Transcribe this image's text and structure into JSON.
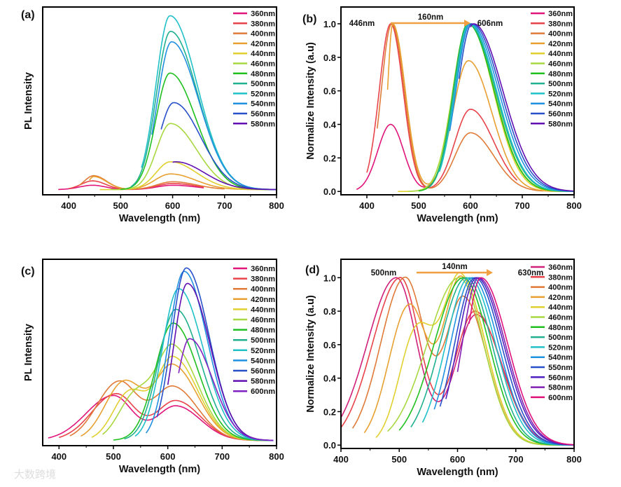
{
  "watermark": "大数跨境",
  "chart_data": [
    {
      "panel_label": "(a)",
      "type": "line",
      "xlabel": "Wavelength (nm)",
      "ylabel": "PL Intensity",
      "xlim": [
        350,
        800
      ],
      "xticks": [
        400,
        500,
        600,
        700,
        800
      ],
      "ylim": [
        -3,
        105
      ],
      "yticks": [],
      "legend_placement": "top-right",
      "series": [
        {
          "name": "360nm",
          "color": "#e0157a",
          "start": 380,
          "end": 660,
          "peaks": [
            [
              446,
              2.5,
              25,
              25
            ],
            [
              600,
              2.5,
              30,
              45
            ]
          ]
        },
        {
          "name": "380nm",
          "color": "#e8434a",
          "start": 400,
          "end": 660,
          "peaks": [
            [
              446,
              5,
              22,
              25
            ],
            [
              600,
              3.5,
              30,
              45
            ]
          ]
        },
        {
          "name": "400nm",
          "color": "#e07a38",
          "start": 420,
          "end": 700,
          "peaks": [
            [
              448,
              8,
              18,
              25
            ],
            [
              600,
              4.5,
              30,
              45
            ]
          ]
        },
        {
          "name": "420nm",
          "color": "#e8a030",
          "start": 440,
          "end": 780,
          "peaks": [
            [
              448,
              7.5,
              10,
              25
            ],
            [
              596,
              9,
              30,
              48
            ]
          ]
        },
        {
          "name": "440nm",
          "color": "#e0d030",
          "start": 460,
          "end": 800,
          "peaks": [
            [
              596,
              16,
              28,
              50
            ]
          ]
        },
        {
          "name": "460nm",
          "color": "#a8d840",
          "start": 480,
          "end": 800,
          "peaks": [
            [
              596,
              38,
              27,
              50
            ]
          ]
        },
        {
          "name": "480nm",
          "color": "#20c020",
          "start": 500,
          "end": 800,
          "peaks": [
            [
              595,
              67,
              27,
              50
            ]
          ]
        },
        {
          "name": "500nm",
          "color": "#20b090",
          "start": 520,
          "end": 800,
          "peaks": [
            [
              596,
              91,
              27,
              52
            ]
          ]
        },
        {
          "name": "520nm",
          "color": "#20c0c8",
          "start": 540,
          "end": 800,
          "peaks": [
            [
              595,
              100,
              27,
              52
            ]
          ]
        },
        {
          "name": "540nm",
          "color": "#2090e0",
          "start": 560,
          "end": 800,
          "peaks": [
            [
              598,
              85,
              27,
              52
            ]
          ]
        },
        {
          "name": "560nm",
          "color": "#2850c8",
          "start": 578,
          "end": 800,
          "peaks": [
            [
              602,
              50,
              28,
              52
            ]
          ]
        },
        {
          "name": "580nm",
          "color": "#6010b0",
          "start": 600,
          "end": 800,
          "peaks": [
            [
              606,
              16,
              30,
              55
            ]
          ]
        }
      ]
    },
    {
      "panel_label": "(b)",
      "type": "line",
      "xlabel": "Wavelength (nm)",
      "ylabel": "Normalize Intensity (a.u)",
      "xlim": [
        350,
        800
      ],
      "xticks": [
        400,
        500,
        600,
        700,
        800
      ],
      "ylim": [
        -0.02,
        1.1
      ],
      "yticks": [
        "0.0",
        "0.2",
        "0.4",
        "0.6",
        "0.8",
        "1.0"
      ],
      "legend_placement": "top-right",
      "annotation": {
        "left": "446nm",
        "shift": "160nm",
        "right": "606nm",
        "arrow_color": "#f0a040"
      },
      "series": [
        {
          "name": "360nm",
          "color": "#e0157a",
          "start": 380,
          "end": 660,
          "peaks": [
            [
              446,
              0.4,
              25,
              25
            ],
            [
              600,
              1.0,
              30,
              45
            ]
          ]
        },
        {
          "name": "380nm",
          "color": "#e8434a",
          "start": 400,
          "end": 690,
          "peaks": [
            [
              446,
              1.0,
              22,
              24
            ],
            [
              600,
              0.49,
              30,
              45
            ]
          ]
        },
        {
          "name": "400nm",
          "color": "#e07a38",
          "start": 420,
          "end": 740,
          "peaks": [
            [
              448,
              1.0,
              20,
              24
            ],
            [
              600,
              0.35,
              30,
              45
            ]
          ]
        },
        {
          "name": "420nm",
          "color": "#e8a030",
          "start": 440,
          "end": 780,
          "peaks": [
            [
              450,
              1.0,
              10,
              24
            ],
            [
              596,
              0.78,
              30,
              45
            ]
          ]
        },
        {
          "name": "440nm",
          "color": "#e0d030",
          "start": 460,
          "end": 800,
          "peaks": [
            [
              596,
              1.0,
              30,
              48
            ]
          ]
        },
        {
          "name": "460nm",
          "color": "#a8d840",
          "start": 480,
          "end": 800,
          "peaks": [
            [
              596,
              1.0,
              30,
              50
            ]
          ]
        },
        {
          "name": "480nm",
          "color": "#20c020",
          "start": 500,
          "end": 800,
          "peaks": [
            [
              595,
              1.0,
              28,
              50
            ]
          ]
        },
        {
          "name": "500nm",
          "color": "#20b090",
          "start": 520,
          "end": 800,
          "peaks": [
            [
              596,
              1.0,
              28,
              52
            ]
          ]
        },
        {
          "name": "520nm",
          "color": "#20c0c8",
          "start": 540,
          "end": 800,
          "peaks": [
            [
              598,
              1.0,
              28,
              52
            ]
          ]
        },
        {
          "name": "540nm",
          "color": "#2090e0",
          "start": 560,
          "end": 800,
          "peaks": [
            [
              600,
              1.0,
              28,
              54
            ]
          ]
        },
        {
          "name": "560nm",
          "color": "#2850c8",
          "start": 578,
          "end": 800,
          "peaks": [
            [
              603,
              1.0,
              28,
              55
            ]
          ]
        },
        {
          "name": "580nm",
          "color": "#6010b0",
          "start": 600,
          "end": 800,
          "peaks": [
            [
              606,
              1.0,
              30,
              56
            ]
          ]
        }
      ]
    },
    {
      "panel_label": "(c)",
      "type": "line",
      "xlabel": "Wavelength (nm)",
      "ylabel": "PL Intensity",
      "xlim": [
        370,
        800
      ],
      "xticks": [
        400,
        500,
        600,
        700,
        800
      ],
      "ylim": [
        -3,
        105
      ],
      "yticks": [],
      "legend_placement": "top-right",
      "series": [
        {
          "name": "360nm",
          "color": "#e0157a",
          "start": 380,
          "end": 795,
          "peaks": [
            [
              500,
              26,
              50,
              35
            ],
            [
              615,
              20,
              35,
              45
            ]
          ]
        },
        {
          "name": "380nm",
          "color": "#e8434a",
          "start": 400,
          "end": 795,
          "peaks": [
            [
              505,
              27,
              45,
              35
            ],
            [
              615,
              23,
              35,
              45
            ]
          ]
        },
        {
          "name": "400nm",
          "color": "#e07a38",
          "start": 420,
          "end": 795,
          "peaks": [
            [
              510,
              34,
              40,
              35
            ],
            [
              610,
              31,
              35,
              45
            ]
          ]
        },
        {
          "name": "420nm",
          "color": "#e8a030",
          "start": 440,
          "end": 795,
          "peaks": [
            [
              520,
              34,
              35,
              35
            ],
            [
              610,
              43,
              32,
              45
            ]
          ]
        },
        {
          "name": "440nm",
          "color": "#e0d030",
          "start": 460,
          "end": 795,
          "peaks": [
            [
              530,
              28,
              30,
              30
            ],
            [
              610,
              48,
              30,
              45
            ]
          ]
        },
        {
          "name": "460nm",
          "color": "#a8d840",
          "start": 480,
          "end": 795,
          "peaks": [
            [
              540,
              26,
              30,
              30
            ],
            [
              610,
              54,
              30,
              45
            ]
          ]
        },
        {
          "name": "480nm",
          "color": "#20c020",
          "start": 500,
          "end": 795,
          "peaks": [
            [
              610,
              68,
              33,
              45
            ]
          ]
        },
        {
          "name": "500nm",
          "color": "#20b090",
          "start": 520,
          "end": 795,
          "peaks": [
            [
              615,
              76,
              32,
              45
            ]
          ]
        },
        {
          "name": "520nm",
          "color": "#20c0c8",
          "start": 540,
          "end": 795,
          "peaks": [
            [
              620,
              88,
              30,
              45
            ]
          ]
        },
        {
          "name": "540nm",
          "color": "#2090e0",
          "start": 560,
          "end": 795,
          "peaks": [
            [
              630,
              98,
              28,
              42
            ]
          ]
        },
        {
          "name": "560nm",
          "color": "#2850c8",
          "start": 580,
          "end": 795,
          "peaks": [
            [
              634,
              100,
              27,
              42
            ]
          ]
        },
        {
          "name": "580nm",
          "color": "#6010b0",
          "start": 600,
          "end": 795,
          "peaks": [
            [
              636,
              91,
              25,
              42
            ]
          ]
        },
        {
          "name": "600nm",
          "color": "#8020c0",
          "start": 620,
          "end": 795,
          "peaks": [
            [
              640,
              59,
              22,
              42
            ]
          ]
        }
      ]
    },
    {
      "panel_label": "(d)",
      "type": "line",
      "xlabel": "Wavelength (nm)",
      "ylabel": "Normalize Intensity (a.u)",
      "xlim": [
        400,
        800
      ],
      "xticks": [
        400,
        500,
        600,
        700,
        800
      ],
      "ylim": [
        -0.02,
        1.11
      ],
      "yticks": [
        "0.0",
        "0.2",
        "0.4",
        "0.6",
        "0.8",
        "1.0"
      ],
      "legend_placement": "top-right",
      "annotation": {
        "left": "500nm",
        "shift": "140nm",
        "right": "630nm",
        "arrow_color": "#f0a040"
      },
      "series": [
        {
          "name": "360nm",
          "color": "#d0207a",
          "start": 400,
          "end": 800,
          "peaks": [
            [
              495,
              1.0,
              50,
              35
            ],
            [
              632,
              0.78,
              35,
              45
            ]
          ]
        },
        {
          "name": "380nm",
          "color": "#e8434a",
          "start": 400,
          "end": 800,
          "peaks": [
            [
              502,
              1.0,
              48,
              33
            ],
            [
              630,
              0.8,
              35,
              45
            ]
          ]
        },
        {
          "name": "400nm",
          "color": "#e07a38",
          "start": 420,
          "end": 800,
          "peaks": [
            [
              510,
              1.0,
              42,
              33
            ],
            [
              610,
              0.88,
              30,
              40
            ]
          ]
        },
        {
          "name": "420nm",
          "color": "#e8a030",
          "start": 440,
          "end": 800,
          "peaks": [
            [
              517,
              0.83,
              35,
              30
            ],
            [
              606,
              1.0,
              30,
              42
            ]
          ]
        },
        {
          "name": "440nm",
          "color": "#e0d030",
          "start": 460,
          "end": 800,
          "peaks": [
            [
              530,
              0.68,
              30,
              30
            ],
            [
              606,
              1.0,
              30,
              42
            ]
          ]
        },
        {
          "name": "460nm",
          "color": "#a8d840",
          "start": 480,
          "end": 800,
          "peaks": [
            [
              603,
              1.0,
              55,
              42
            ]
          ]
        },
        {
          "name": "480nm",
          "color": "#20c020",
          "start": 500,
          "end": 800,
          "peaks": [
            [
              610,
              1.0,
              50,
              44
            ]
          ]
        },
        {
          "name": "500nm",
          "color": "#20b090",
          "start": 520,
          "end": 800,
          "peaks": [
            [
              615,
              1.0,
              45,
              44
            ]
          ]
        },
        {
          "name": "520nm",
          "color": "#20c0c8",
          "start": 540,
          "end": 800,
          "peaks": [
            [
              620,
              1.0,
              40,
              45
            ]
          ]
        },
        {
          "name": "540nm",
          "color": "#2090e0",
          "start": 560,
          "end": 800,
          "peaks": [
            [
              625,
              1.0,
              37,
              45
            ]
          ]
        },
        {
          "name": "550nm",
          "color": "#2850c8",
          "start": 570,
          "end": 800,
          "peaks": [
            [
              630,
              1.0,
              35,
              45
            ]
          ]
        },
        {
          "name": "560nm",
          "color": "#5020c0",
          "start": 580,
          "end": 800,
          "peaks": [
            [
              633,
              1.0,
              33,
              46
            ]
          ]
        },
        {
          "name": "580nm",
          "color": "#8020b0",
          "start": 600,
          "end": 800,
          "peaks": [
            [
              636,
              1.0,
              28,
              46
            ]
          ]
        },
        {
          "name": "600nm",
          "color": "#e0107a",
          "start": 620,
          "end": 800,
          "peaks": [
            [
              640,
              1.0,
              25,
              46
            ]
          ]
        }
      ]
    }
  ]
}
